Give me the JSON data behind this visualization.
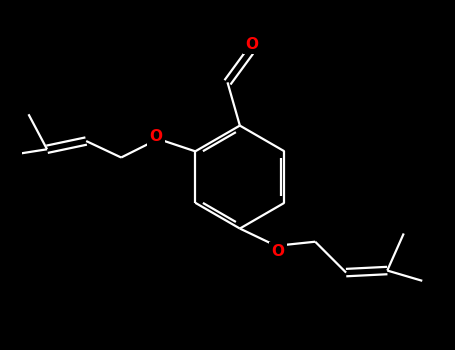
{
  "background_color": "#000000",
  "bond_color": "#ffffff",
  "atom_colors": {
    "O": "#ff0000"
  },
  "bond_width": 1.6,
  "figsize": [
    4.55,
    3.5
  ],
  "dpi": 100,
  "xlim": [
    -4.5,
    5.5
  ],
  "ylim": [
    -4.0,
    4.5
  ]
}
